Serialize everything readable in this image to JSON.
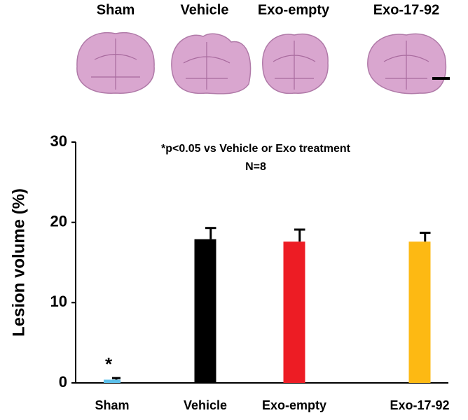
{
  "chart_data": {
    "type": "bar",
    "y_label": "Lesion volume (%)",
    "annotations": [
      "*p<0.05 vs Vehicle or Exo treatment",
      "N=8"
    ],
    "categories": [
      "Sham",
      "Vehicle",
      "Exo-empty",
      "Exo-17-92"
    ],
    "values": [
      0.4,
      17.9,
      17.6,
      17.6
    ],
    "errors": [
      0.2,
      1.4,
      1.5,
      1.1
    ],
    "value_annotations": [
      "*",
      null,
      null,
      null
    ],
    "colors": [
      "#5bc0eb",
      "#000000",
      "#ed1c24",
      "#fdb913"
    ],
    "ylim": [
      0,
      30
    ],
    "yticks": [
      0,
      10,
      20,
      30
    ]
  }
}
